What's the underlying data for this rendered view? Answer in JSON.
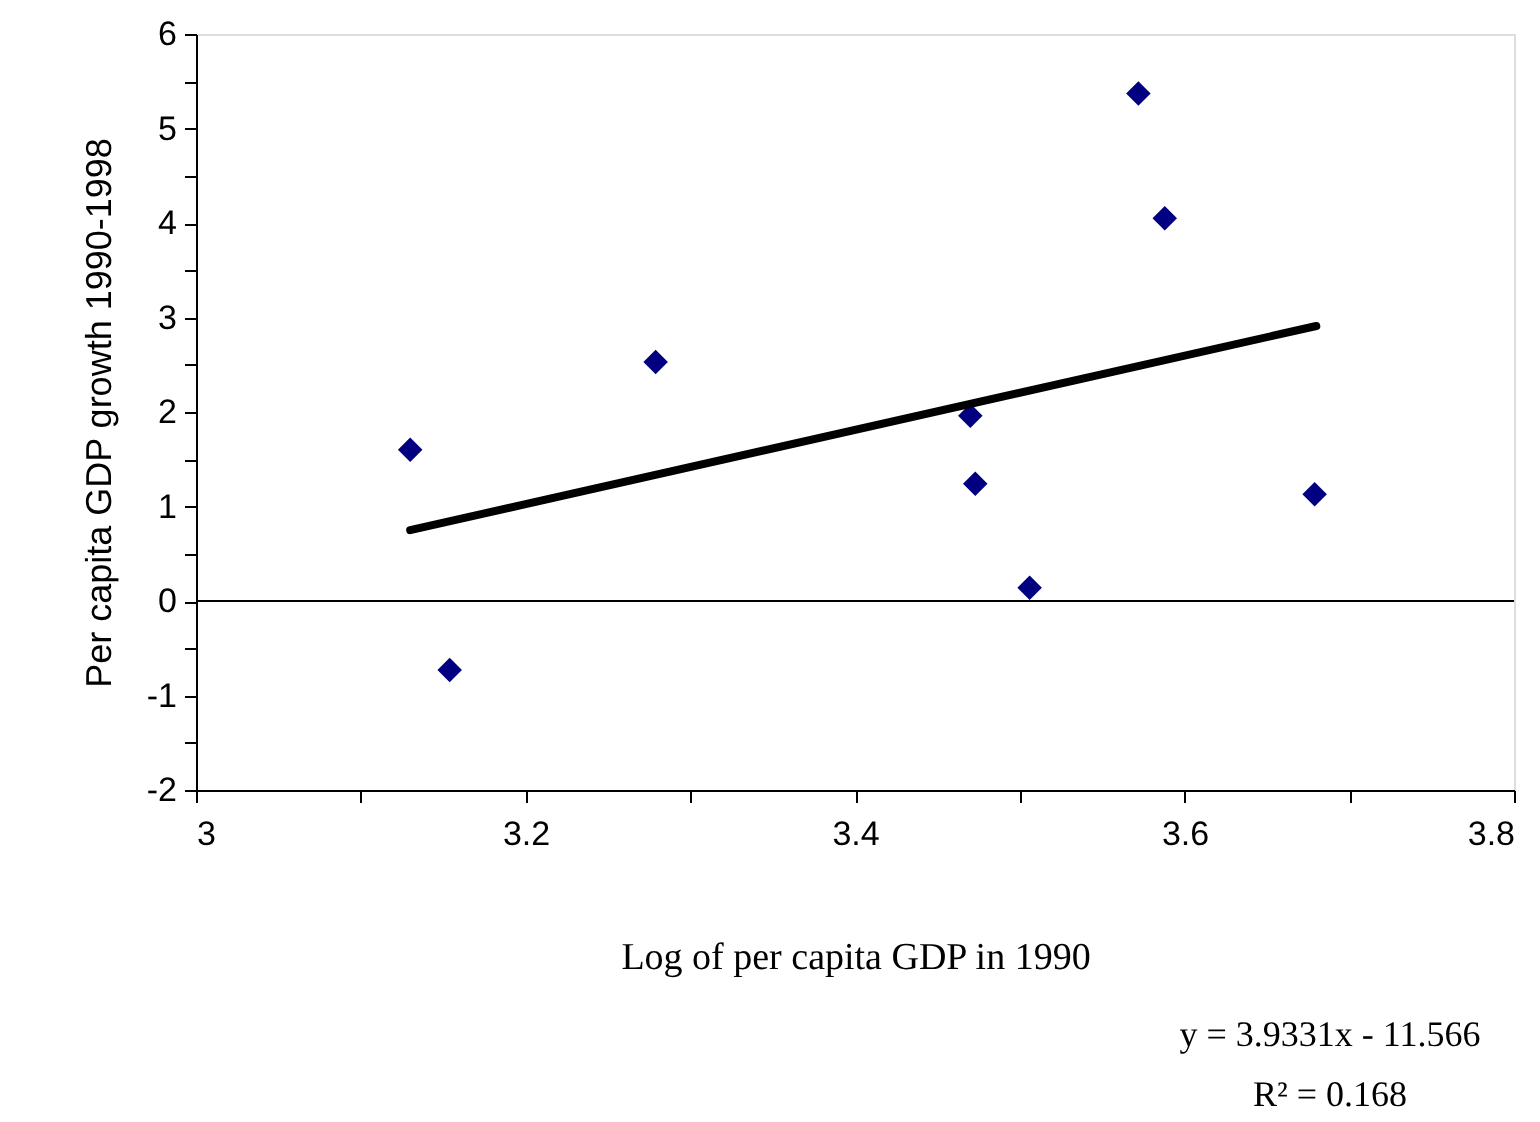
{
  "chart_data": {
    "type": "scatter",
    "xlabel": "Log of per capita GDP in 1990",
    "ylabel": "Per capita GDP growth 1990-1998",
    "series": [
      {
        "color": "#000080",
        "marker": "diamond",
        "x": [
          3.13,
          3.154,
          3.279,
          3.47,
          3.473,
          3.506,
          3.572,
          3.588,
          3.679
        ],
        "values": [
          1.6,
          -0.73,
          2.53,
          1.96,
          1.24,
          0.14,
          5.37,
          4.05,
          1.13
        ]
      },
      {
        "type": "line",
        "color": "#000000",
        "line_style": "solid",
        "x": [
          3.13,
          3.68
        ],
        "values": [
          0.75,
          2.91
        ]
      }
    ],
    "xlim": [
      3,
      3.8
    ],
    "xticks": [
      3,
      {
        "value": 3.1,
        "label": null
      },
      3.2,
      {
        "value": 3.3,
        "label": null
      },
      3.4,
      {
        "value": 3.5,
        "label": null
      },
      3.6,
      {
        "value": 3.7,
        "label": null
      },
      3.8
    ],
    "ylim": [
      -2,
      6
    ],
    "yticks": [
      -2,
      {
        "value": -1.5,
        "label": null
      },
      -1,
      {
        "value": -0.5,
        "label": null
      },
      0,
      {
        "value": 0.5,
        "label": null
      },
      1,
      {
        "value": 1.5,
        "label": null
      },
      2,
      {
        "value": 2.5,
        "label": null
      },
      3,
      {
        "value": 3.5,
        "label": null
      },
      4,
      {
        "value": 4.5,
        "label": null
      },
      5,
      {
        "value": 5.5,
        "label": null
      },
      6
    ],
    "ref_lines": [
      {
        "axis": "y",
        "value": 0,
        "color": "#000000"
      }
    ],
    "annotations": [
      "y = 3.9331x - 11.566",
      "R² = 0.168"
    ],
    "grid": false
  }
}
